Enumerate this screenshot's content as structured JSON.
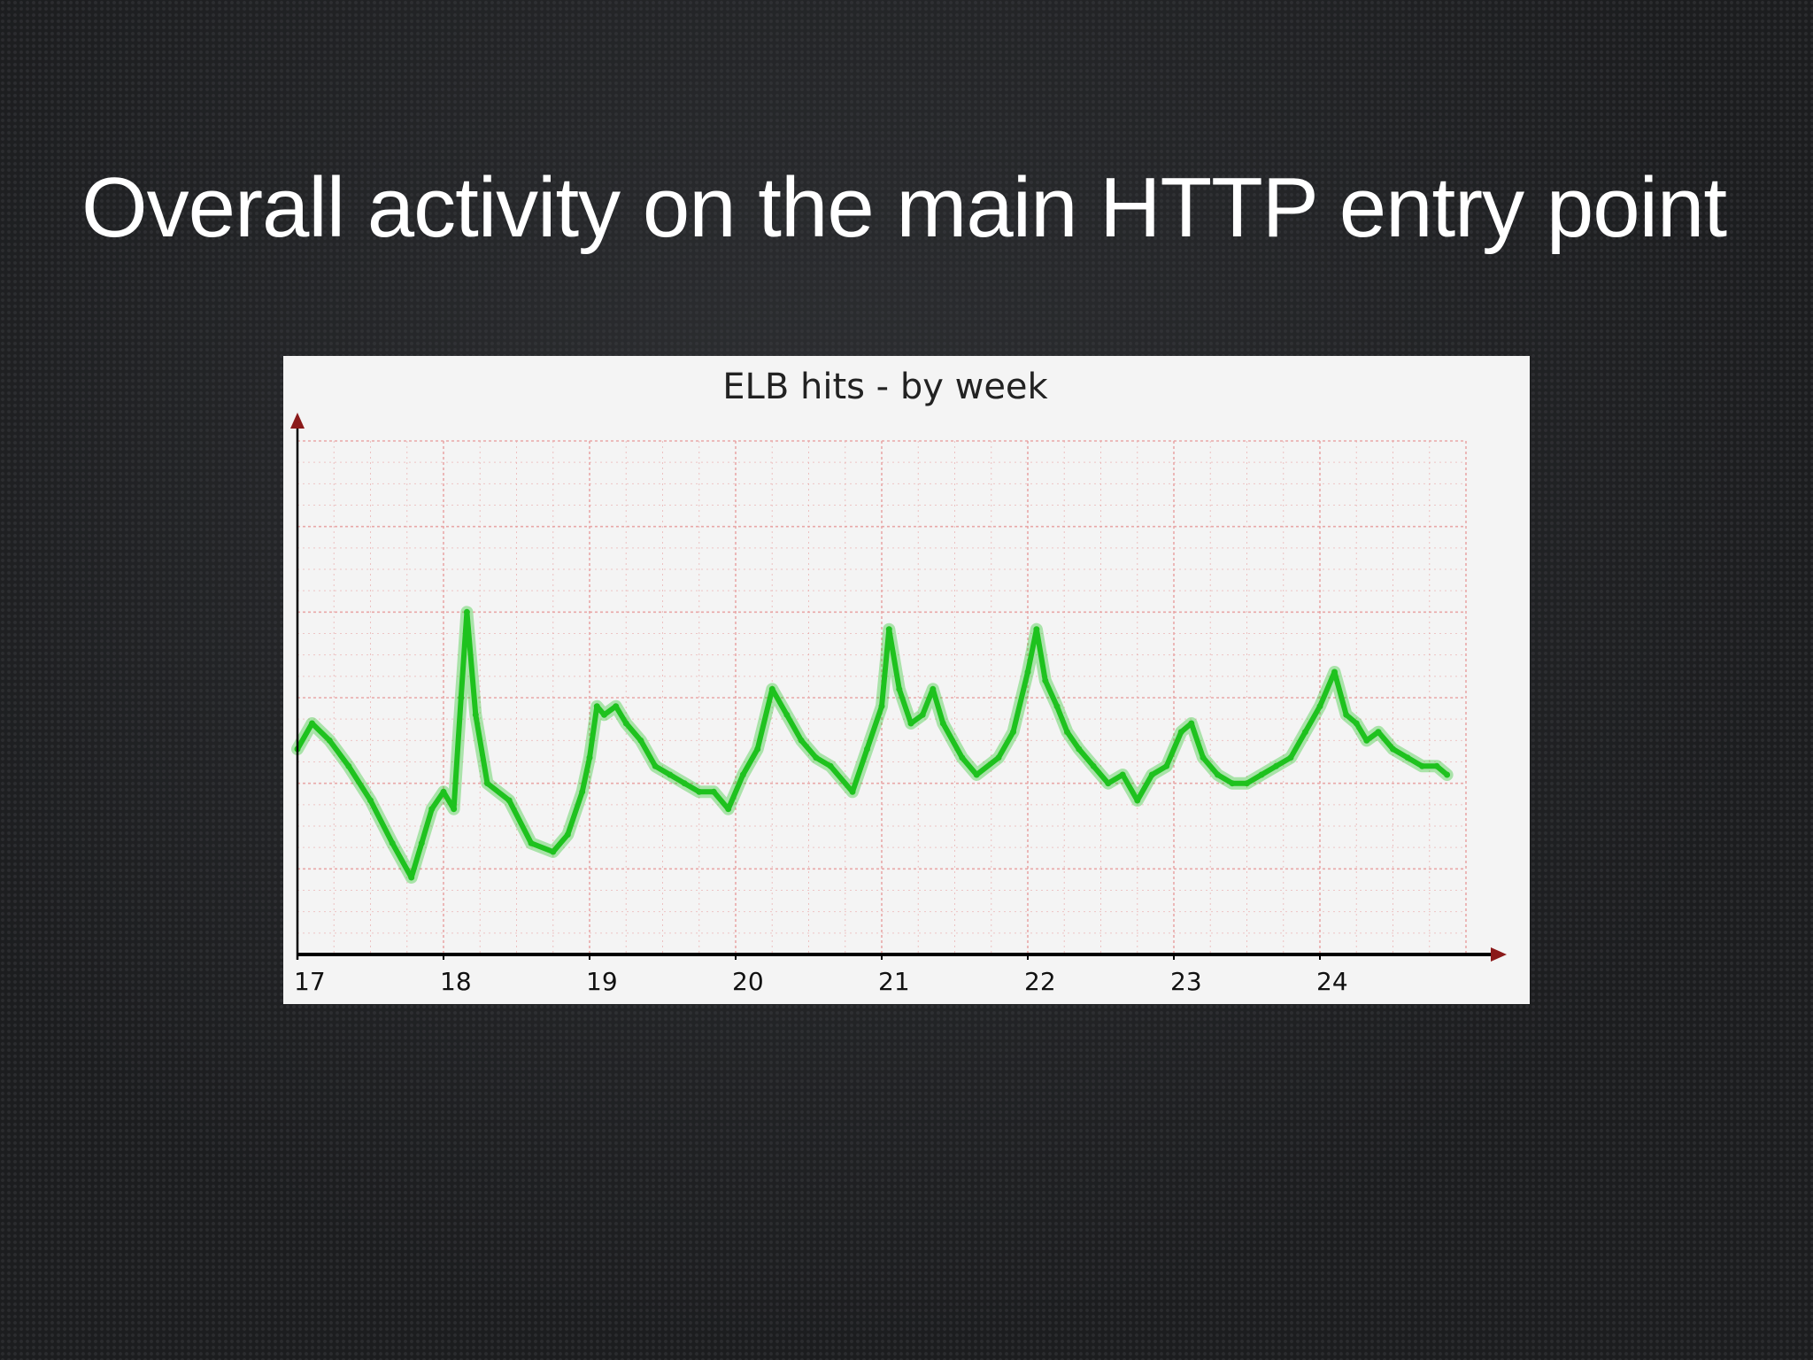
{
  "slide": {
    "title": "Overall activity on the main HTTP entry point"
  },
  "colors": {
    "background": "#1c1d1f",
    "title_text": "#ffffff",
    "panel": "#f4f4f4",
    "series_line": "#1ec21e",
    "grid": "#e8a0a0",
    "axis": "#000000",
    "arrow": "#8b1a1a"
  },
  "chart_data": {
    "type": "line",
    "title": "ELB hits - by week",
    "xlabel": "",
    "ylabel": "",
    "x_ticks": [
      "17",
      "18",
      "19",
      "20",
      "21",
      "22",
      "23",
      "24"
    ],
    "xlim": [
      17,
      25
    ],
    "ylim": [
      0,
      6
    ],
    "y_tick_labels_shown": false,
    "grid": true,
    "legend": "none",
    "series": [
      {
        "values_x": [
          17.0,
          17.1,
          17.22,
          17.35,
          17.5,
          17.65,
          17.78,
          17.85,
          17.92,
          18.0,
          18.07,
          18.12,
          18.16,
          18.22,
          18.3,
          18.45,
          18.6,
          18.75,
          18.85,
          18.95,
          19.0,
          19.05,
          19.1,
          19.18,
          19.25,
          19.35,
          19.45,
          19.55,
          19.65,
          19.75,
          19.85,
          19.95,
          20.05,
          20.15,
          20.25,
          20.35,
          20.45,
          20.55,
          20.65,
          20.8,
          20.9,
          21.0,
          21.05,
          21.12,
          21.2,
          21.28,
          21.35,
          21.42,
          21.55,
          21.65,
          21.8,
          21.9,
          22.0,
          22.06,
          22.12,
          22.2,
          22.27,
          22.35,
          22.45,
          22.55,
          22.65,
          22.75,
          22.85,
          22.95,
          23.05,
          23.12,
          23.2,
          23.3,
          23.4,
          23.5,
          23.6,
          23.7,
          23.8,
          23.9,
          24.0,
          24.1,
          24.18,
          24.25,
          24.32,
          24.4,
          24.5,
          24.6,
          24.7,
          24.8,
          24.87
        ],
        "values_y": [
          2.4,
          2.7,
          2.5,
          2.2,
          1.8,
          1.3,
          0.9,
          1.3,
          1.7,
          1.9,
          1.7,
          3.0,
          4.0,
          2.8,
          2.0,
          1.8,
          1.3,
          1.2,
          1.4,
          1.9,
          2.3,
          2.9,
          2.8,
          2.9,
          2.7,
          2.5,
          2.2,
          2.1,
          2.0,
          1.9,
          1.9,
          1.7,
          2.1,
          2.4,
          3.1,
          2.8,
          2.5,
          2.3,
          2.2,
          1.9,
          2.4,
          2.9,
          3.8,
          3.1,
          2.7,
          2.8,
          3.1,
          2.7,
          2.3,
          2.1,
          2.3,
          2.6,
          3.3,
          3.8,
          3.2,
          2.9,
          2.6,
          2.4,
          2.2,
          2.0,
          2.1,
          1.8,
          2.1,
          2.2,
          2.6,
          2.7,
          2.3,
          2.1,
          2.0,
          2.0,
          2.1,
          2.2,
          2.3,
          2.6,
          2.9,
          3.3,
          2.8,
          2.7,
          2.5,
          2.6,
          2.4,
          2.3,
          2.2,
          2.2,
          2.1
        ]
      }
    ]
  }
}
